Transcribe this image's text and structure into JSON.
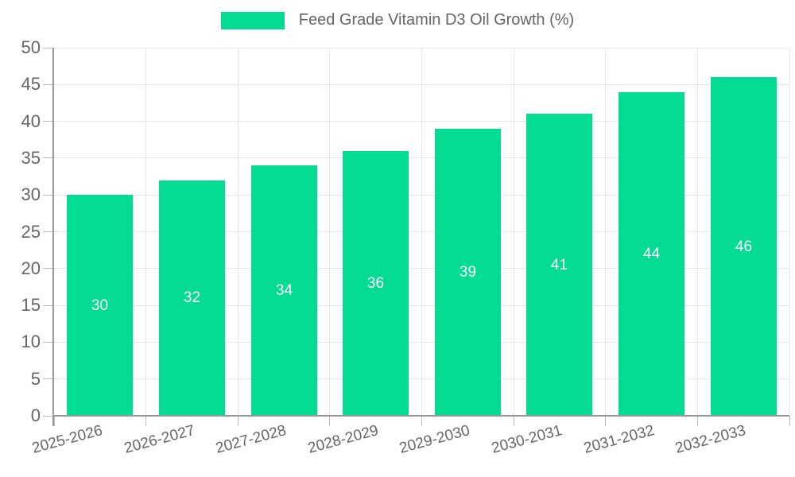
{
  "chart_data": {
    "type": "bar",
    "title": "Feed Grade Vitamin D3 Oil Growth (%)",
    "legend_label": "Feed Grade Vitamin D3 Oil Growth (%)",
    "categories": [
      "2025-2026",
      "2026-2027",
      "2027-2028",
      "2028-2029",
      "2029-2030",
      "2030-2031",
      "2031-2032",
      "2032-2033"
    ],
    "values": [
      30,
      32,
      34,
      36,
      39,
      41,
      44,
      46
    ],
    "xlabel": "",
    "ylabel": "",
    "ylim": [
      0,
      50
    ],
    "yticks": [
      0,
      5,
      10,
      15,
      20,
      25,
      30,
      35,
      40,
      45,
      50
    ],
    "grid": true,
    "legend_position": "top-center",
    "value_label_position": "inside-center",
    "x_label_rotation_deg": 15,
    "colors": {
      "bar": "#04DC94",
      "value_label": "#ffffff",
      "axis_text": "#666666",
      "grid": "#e6e6e6",
      "axis_line": "#999999",
      "tick": "#bbbbbb"
    }
  }
}
